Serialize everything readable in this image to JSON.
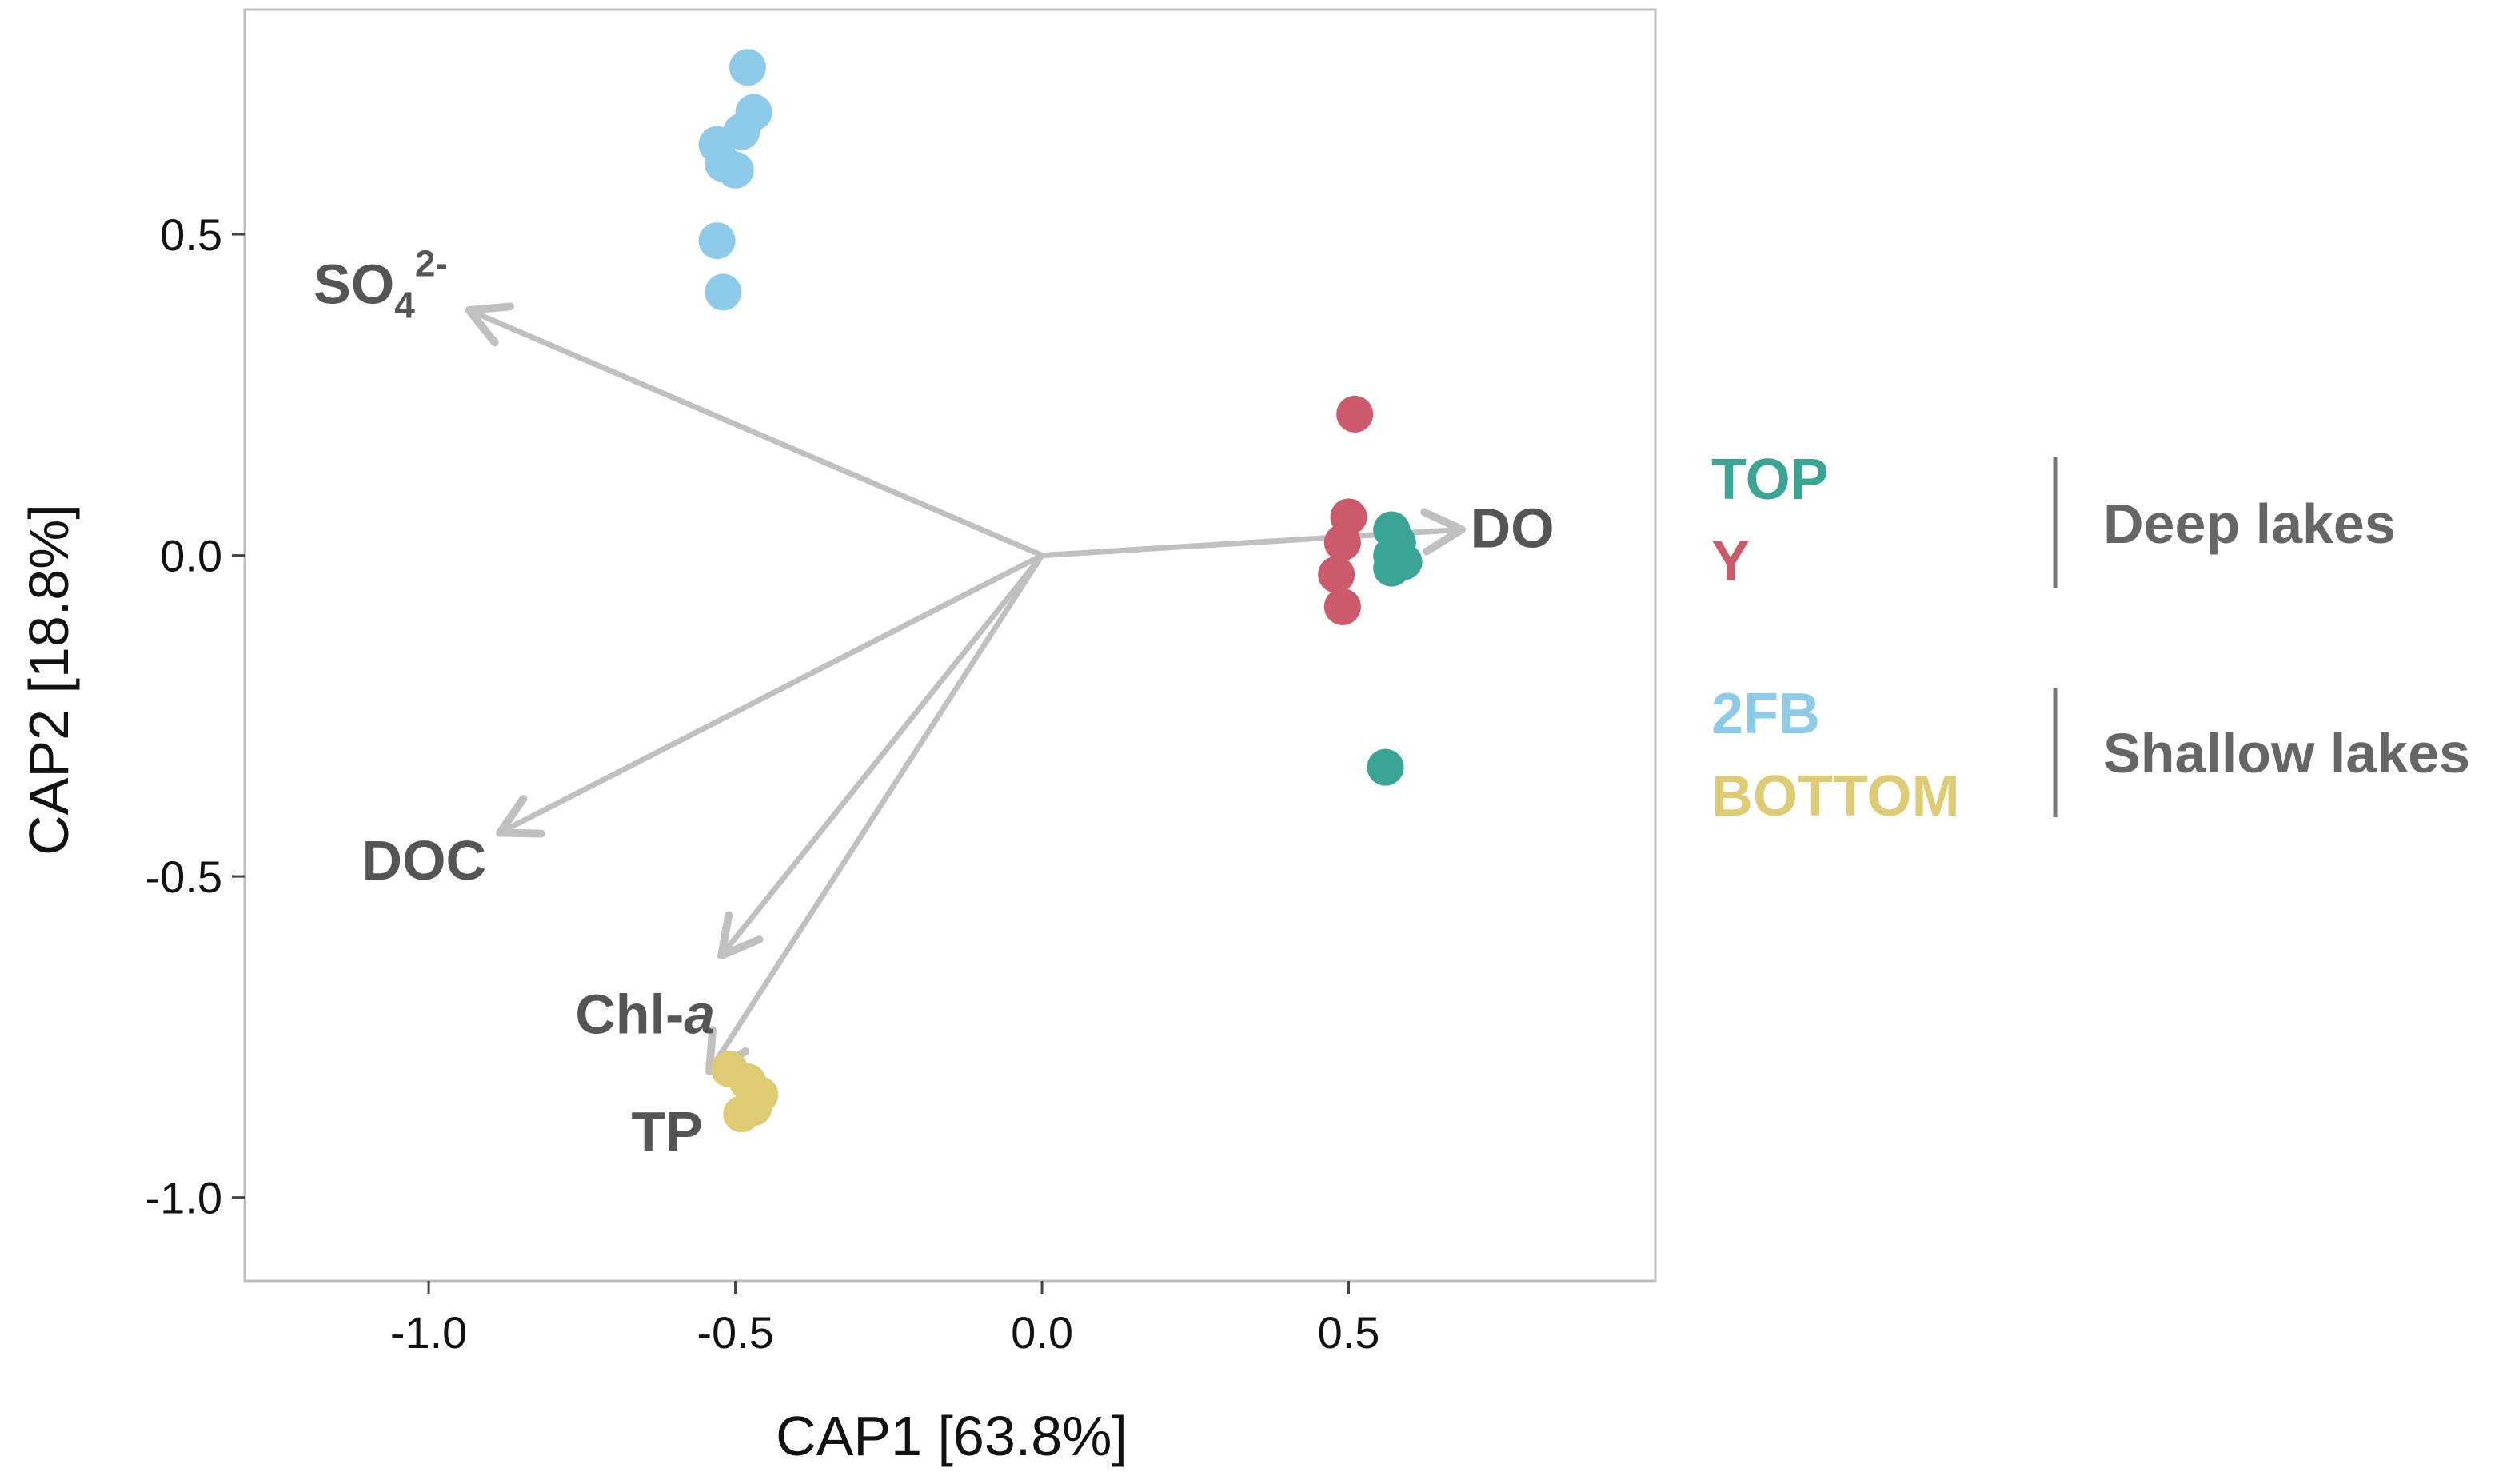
{
  "chart_data": {
    "type": "scatter",
    "title": "",
    "xlabel": "CAP1 [63.8%]",
    "ylabel": "CAP2 [18.8%]",
    "xlim": [
      -1.3,
      1.0
    ],
    "ylim": [
      -1.13,
      0.85
    ],
    "xticks": [
      {
        "value": -1.0,
        "label": "-1.0"
      },
      {
        "value": -0.5,
        "label": "-0.5"
      },
      {
        "value": 0.0,
        "label": "0.0"
      },
      {
        "value": 0.5,
        "label": "0.5"
      }
    ],
    "yticks": [
      {
        "value": 0.5,
        "label": "0.5"
      },
      {
        "value": 0.0,
        "label": "0.0"
      },
      {
        "value": -0.5,
        "label": "-0.5"
      },
      {
        "value": -1.0,
        "label": "-1.0"
      }
    ],
    "grid": false,
    "series": [
      {
        "name": "TOP",
        "color": "#3aa594",
        "points": [
          {
            "x": 0.57,
            "y": 0.04
          },
          {
            "x": 0.58,
            "y": 0.02
          },
          {
            "x": 0.57,
            "y": 0.0
          },
          {
            "x": 0.59,
            "y": -0.01
          },
          {
            "x": 0.57,
            "y": -0.02
          },
          {
            "x": 0.56,
            "y": -0.33
          }
        ]
      },
      {
        "name": "Y",
        "color": "#cc5a6a",
        "points": [
          {
            "x": 0.51,
            "y": 0.22
          },
          {
            "x": 0.5,
            "y": 0.06
          },
          {
            "x": 0.49,
            "y": 0.02
          },
          {
            "x": 0.48,
            "y": -0.03
          },
          {
            "x": 0.49,
            "y": -0.08
          }
        ]
      },
      {
        "name": "2FB",
        "color": "#8ecbea",
        "points": [
          {
            "x": -0.48,
            "y": 0.76
          },
          {
            "x": -0.47,
            "y": 0.69
          },
          {
            "x": -0.49,
            "y": 0.66
          },
          {
            "x": -0.53,
            "y": 0.64
          },
          {
            "x": -0.52,
            "y": 0.61
          },
          {
            "x": -0.5,
            "y": 0.6
          },
          {
            "x": -0.53,
            "y": 0.49
          },
          {
            "x": -0.52,
            "y": 0.41
          }
        ]
      },
      {
        "name": "BOTTOM",
        "color": "#ddcc74",
        "points": [
          {
            "x": -0.51,
            "y": -0.8
          },
          {
            "x": -0.48,
            "y": -0.82
          },
          {
            "x": -0.46,
            "y": -0.84
          },
          {
            "x": -0.47,
            "y": -0.86
          },
          {
            "x": -0.49,
            "y": -0.87
          }
        ]
      }
    ],
    "vectors": [
      {
        "name": "SO4 2-",
        "x": -0.93,
        "y": 0.38,
        "label": "SO",
        "sub": "4",
        "sup": "2-"
      },
      {
        "name": "DO",
        "x": 0.68,
        "y": 0.04,
        "label": "DO"
      },
      {
        "name": "DOC",
        "x": -0.88,
        "y": -0.43,
        "label": "DOC"
      },
      {
        "name": "Chl-a",
        "x": -0.52,
        "y": -0.62,
        "label": "Chl-",
        "italic": "a"
      },
      {
        "name": "TP",
        "x": -0.54,
        "y": -0.8,
        "label": "TP"
      }
    ],
    "vector_color": "#c0c0c0",
    "legend": {
      "position": "right",
      "groups": [
        {
          "label": "Deep lakes",
          "entries": [
            {
              "label": "TOP",
              "color": "#3aa594"
            },
            {
              "label": "Y",
              "color": "#cc5a6a"
            }
          ]
        },
        {
          "label": "Shallow lakes",
          "entries": [
            {
              "label": "2FB",
              "color": "#8ecbea"
            },
            {
              "label": "BOTTOM",
              "color": "#ddcc74"
            }
          ]
        }
      ]
    }
  }
}
